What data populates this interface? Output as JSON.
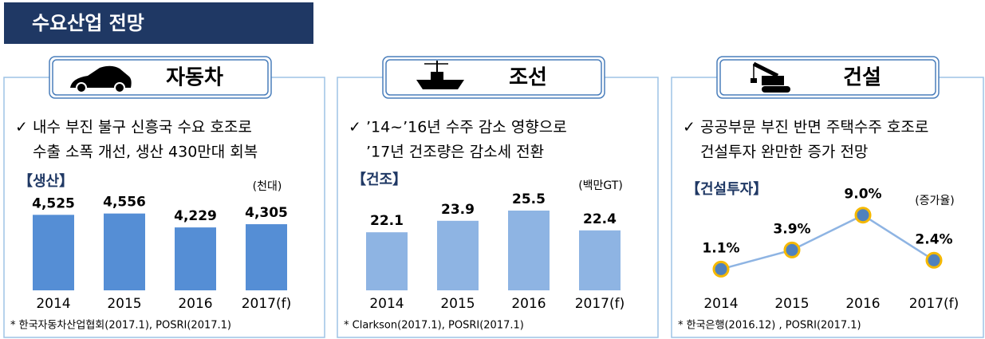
{
  "header": {
    "title": "수요산업 전망"
  },
  "chart_data": [
    {
      "type": "bar",
      "panel_title": "자동차",
      "description": [
        "✓ 내수 부진 불구 신흥국 수요 호조로",
        "수출 소폭 개선, 생산 430만대 회복"
      ],
      "title": "【생산】",
      "unit": "(천대)",
      "categories": [
        "2014",
        "2015",
        "2016",
        "2017(f)"
      ],
      "values": [
        4525,
        4556,
        4229,
        4305
      ],
      "value_labels": [
        "4,525",
        "4,556",
        "4,229",
        "4,305"
      ],
      "color": "#558ed5",
      "ylim": [
        2750,
        5000
      ],
      "source": "* 한국자동차산업협회(2017.1), POSRI(2017.1)"
    },
    {
      "type": "bar",
      "panel_title": "조선",
      "description": [
        "✓ ’14~’16년 수주 감소 영향으로",
        "’17년 건조량은 감소세 전환"
      ],
      "title": "【건조】",
      "unit": "(백만GT)",
      "categories": [
        "2014",
        "2015",
        "2016",
        "2017(f)"
      ],
      "values": [
        22.1,
        23.9,
        25.5,
        22.4
      ],
      "color": "#8eb4e3",
      "ylim": [
        13,
        28
      ],
      "source": "* Clarkson(2017.1), POSRI(2017.1)"
    },
    {
      "type": "line",
      "panel_title": "건설",
      "description": [
        "✓ 공공부문 부진 반면 주택수주 호조로",
        "건설투자 완만한 증가 전망"
      ],
      "title": "【건설투자】",
      "unit": "(증가율)",
      "categories": [
        "2014",
        "2015",
        "2016",
        "2017(f)"
      ],
      "values": [
        1.1,
        3.9,
        9.0,
        2.4
      ],
      "value_labels": [
        "1.1%",
        "3.9%",
        "9.0%",
        "2.4%"
      ],
      "color": "#8eb4e3",
      "marker_color": "#4f81bd",
      "marker_edge": "#f5b800",
      "ylim": [
        -2,
        12
      ],
      "source": "* 한국은행(2016.12) , POSRI(2017.1)"
    }
  ]
}
